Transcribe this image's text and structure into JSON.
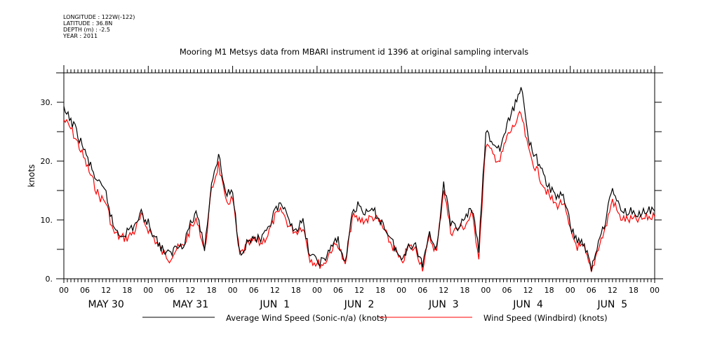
{
  "header": {
    "metadata": [
      "LONGITUDE : 122W(-122)",
      "LATITUDE : 36.8N",
      "DEPTH (m) : -2.5",
      "YEAR : 2011"
    ],
    "title": "Mooring M1 Metsys data from MBARI instrument id 1396 at original sampling intervals"
  },
  "chart_data": {
    "type": "line",
    "title": "Mooring M1 Metsys data from MBARI instrument id 1396 at original sampling intervals",
    "xlabel": "",
    "ylabel": "knots",
    "ylim": [
      0,
      35
    ],
    "xlim_hours": [
      0,
      168
    ],
    "x_unit": "hours since 2011-05-30 00:00",
    "yticks": [
      0,
      10,
      20,
      30
    ],
    "ytick_labels": [
      "0.",
      "10.",
      "20.",
      "30."
    ],
    "xtick_hour_labels": [
      "00",
      "06",
      "12",
      "18",
      "00",
      "06",
      "12",
      "18",
      "00",
      "06",
      "12",
      "18",
      "00",
      "06",
      "12",
      "18",
      "00",
      "06",
      "12",
      "18",
      "00",
      "06",
      "12",
      "18",
      "00",
      "06",
      "12",
      "18",
      "00"
    ],
    "day_labels": [
      "MAY 30",
      "MAY 31",
      "JUN  1",
      "JUN  2",
      "JUN  3",
      "JUN  4",
      "JUN  5"
    ],
    "grid": false,
    "legend_position": "bottom",
    "x": [
      0,
      2,
      4,
      6,
      8,
      10,
      12,
      14,
      16,
      18,
      20,
      22,
      24,
      26,
      28,
      30,
      32,
      34,
      36,
      38,
      40,
      42,
      44,
      46,
      48,
      50,
      52,
      54,
      56,
      58,
      60,
      62,
      64,
      66,
      68,
      70,
      72,
      74,
      76,
      78,
      80,
      82,
      84,
      86,
      88,
      90,
      92,
      94,
      96,
      98,
      100,
      102,
      104,
      106,
      108,
      110,
      112,
      114,
      116,
      118,
      120,
      122,
      124,
      126,
      128,
      130,
      132,
      134,
      136,
      138,
      140,
      142,
      144,
      146,
      148,
      150,
      152,
      154,
      156,
      158,
      160,
      162,
      164,
      166,
      168
    ],
    "series": [
      {
        "name": "Average Wind Speed (Sonic-n/a) (knots)",
        "color": "#000000",
        "values": [
          28.5,
          27.0,
          24.5,
          21.5,
          18.5,
          16.0,
          14.5,
          9.0,
          7.5,
          8.0,
          9.0,
          11.0,
          9.5,
          7.0,
          5.0,
          4.0,
          5.5,
          6.0,
          9.5,
          11.0,
          5.0,
          16.5,
          21.0,
          14.5,
          14.5,
          4.5,
          6.0,
          7.0,
          6.5,
          8.0,
          11.5,
          12.5,
          9.5,
          8.5,
          9.5,
          4.0,
          3.0,
          3.0,
          5.5,
          6.5,
          2.5,
          11.5,
          12.5,
          11.0,
          11.5,
          10.0,
          8.0,
          5.5,
          3.0,
          6.0,
          5.5,
          2.5,
          8.0,
          5.0,
          16.5,
          9.0,
          9.0,
          10.0,
          12.0,
          5.0,
          25.0,
          23.0,
          22.0,
          26.0,
          29.0,
          33.0,
          24.0,
          21.0,
          18.0,
          15.5,
          14.0,
          14.5,
          9.0,
          6.5,
          6.0,
          1.5,
          6.5,
          10.0,
          15.5,
          12.0,
          11.5,
          11.5,
          11.0,
          11.5,
          11.5
        ]
      },
      {
        "name": "Wind Speed (Windbird) (knots)",
        "color": "#ff0000",
        "values": [
          27.0,
          25.5,
          23.0,
          20.0,
          17.0,
          14.0,
          13.0,
          8.0,
          7.0,
          7.0,
          8.0,
          10.5,
          8.5,
          6.5,
          4.5,
          3.5,
          5.0,
          5.5,
          8.5,
          10.0,
          4.5,
          15.0,
          19.5,
          13.0,
          13.5,
          4.0,
          5.5,
          6.5,
          6.0,
          7.5,
          10.5,
          11.5,
          9.0,
          8.0,
          9.0,
          3.5,
          2.5,
          2.5,
          5.0,
          6.0,
          2.0,
          10.5,
          10.0,
          10.0,
          10.5,
          9.5,
          7.0,
          5.0,
          2.5,
          5.5,
          5.0,
          2.0,
          7.0,
          4.5,
          15.5,
          8.0,
          8.5,
          9.0,
          11.0,
          4.0,
          23.0,
          21.0,
          20.0,
          24.0,
          26.0,
          28.0,
          22.0,
          19.0,
          16.5,
          14.0,
          12.5,
          13.0,
          8.0,
          5.5,
          5.0,
          1.0,
          5.5,
          8.5,
          13.5,
          10.5,
          10.0,
          10.0,
          10.0,
          10.5,
          10.5
        ]
      }
    ]
  },
  "legend": {
    "items": [
      {
        "label": "Average Wind Speed (Sonic-n/a) (knots)",
        "color": "#000000"
      },
      {
        "label": "Wind Speed (Windbird) (knots)",
        "color": "#ff0000"
      }
    ]
  }
}
